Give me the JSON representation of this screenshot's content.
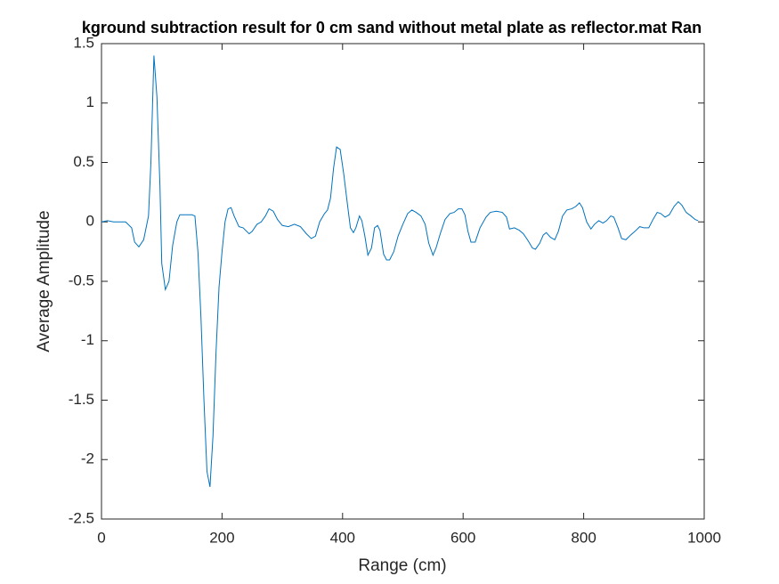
{
  "chart_data": {
    "type": "line",
    "title": "kground subtraction result for 0 cm sand without metal plate as reflector.mat Ran",
    "xlabel": "Range (cm)",
    "ylabel": "Average Amplitude",
    "x": [
      0,
      10,
      20,
      30,
      40,
      50,
      55,
      62,
      70,
      78,
      82,
      87,
      92,
      97,
      100,
      106,
      112,
      118,
      125,
      130,
      140,
      150,
      155,
      160,
      165,
      170,
      175,
      180,
      185,
      190,
      195,
      200,
      205,
      210,
      215,
      220,
      228,
      235,
      245,
      250,
      258,
      265,
      272,
      278,
      285,
      292,
      300,
      310,
      320,
      330,
      340,
      348,
      355,
      362,
      370,
      375,
      380,
      385,
      390,
      396,
      402,
      408,
      413,
      418,
      422,
      428,
      432,
      437,
      442,
      448,
      453,
      458,
      462,
      468,
      473,
      478,
      485,
      492,
      500,
      508,
      515,
      522,
      530,
      537,
      543,
      550,
      555,
      562,
      570,
      578,
      585,
      592,
      598,
      603,
      608,
      613,
      620,
      628,
      638,
      645,
      655,
      665,
      672,
      677,
      685,
      693,
      700,
      708,
      715,
      720,
      727,
      733,
      738,
      745,
      752,
      758,
      765,
      772,
      780,
      787,
      793,
      798,
      805,
      812,
      818,
      825,
      832,
      838,
      845,
      850,
      857,
      863,
      870,
      878,
      885,
      893,
      900,
      908,
      915,
      922,
      928,
      935,
      942,
      950,
      957,
      963,
      970,
      978,
      985,
      990
    ],
    "series": [
      {
        "color": "#0072bd",
        "values": [
          0,
          0.01,
          0,
          0,
          0,
          -0.05,
          -0.17,
          -0.21,
          -0.15,
          0.05,
          0.5,
          1.4,
          1.05,
          0.3,
          -0.35,
          -0.57,
          -0.5,
          -0.2,
          0,
          0.06,
          0.06,
          0.06,
          0.05,
          -0.25,
          -0.8,
          -1.5,
          -2.1,
          -2.23,
          -1.8,
          -1.1,
          -0.55,
          -0.25,
          0,
          0.11,
          0.12,
          0.05,
          -0.04,
          -0.05,
          -0.1,
          -0.08,
          -0.02,
          0,
          0.05,
          0.11,
          0.09,
          0.02,
          -0.03,
          -0.04,
          -0.02,
          -0.04,
          -0.1,
          -0.14,
          -0.12,
          0,
          0.07,
          0.1,
          0.2,
          0.45,
          0.63,
          0.61,
          0.4,
          0.15,
          -0.05,
          -0.09,
          -0.05,
          0.05,
          0.01,
          -0.12,
          -0.28,
          -0.22,
          -0.05,
          -0.03,
          -0.07,
          -0.27,
          -0.32,
          -0.32,
          -0.25,
          -0.12,
          -0.02,
          0.07,
          0.1,
          0.08,
          0.05,
          -0.02,
          -0.18,
          -0.28,
          -0.22,
          -0.1,
          0.02,
          0.07,
          0.08,
          0.11,
          0.11,
          0.06,
          -0.08,
          -0.17,
          -0.17,
          -0.05,
          0.04,
          0.08,
          0.09,
          0.08,
          0.04,
          -0.06,
          -0.05,
          -0.07,
          -0.1,
          -0.16,
          -0.22,
          -0.23,
          -0.18,
          -0.11,
          -0.09,
          -0.13,
          -0.15,
          -0.08,
          0.05,
          0.1,
          0.11,
          0.13,
          0.16,
          0.12,
          0,
          -0.06,
          -0.02,
          0.01,
          -0.01,
          0.01,
          0.05,
          0.04,
          -0.05,
          -0.14,
          -0.15,
          -0.11,
          -0.08,
          -0.04,
          -0.05,
          -0.05,
          0.02,
          0.08,
          0.07,
          0.04,
          0.06,
          0.13,
          0.17,
          0.14,
          0.08,
          0.05,
          0.02,
          0.01
        ]
      }
    ],
    "xlim": [
      0,
      1000
    ],
    "xticks": [
      0,
      200,
      400,
      600,
      800,
      1000
    ],
    "ylim": [
      -2.5,
      1.5
    ],
    "yticks": [
      -2.5,
      -2,
      -1.5,
      -1,
      -0.5,
      0,
      0.5,
      1,
      1.5
    ]
  }
}
